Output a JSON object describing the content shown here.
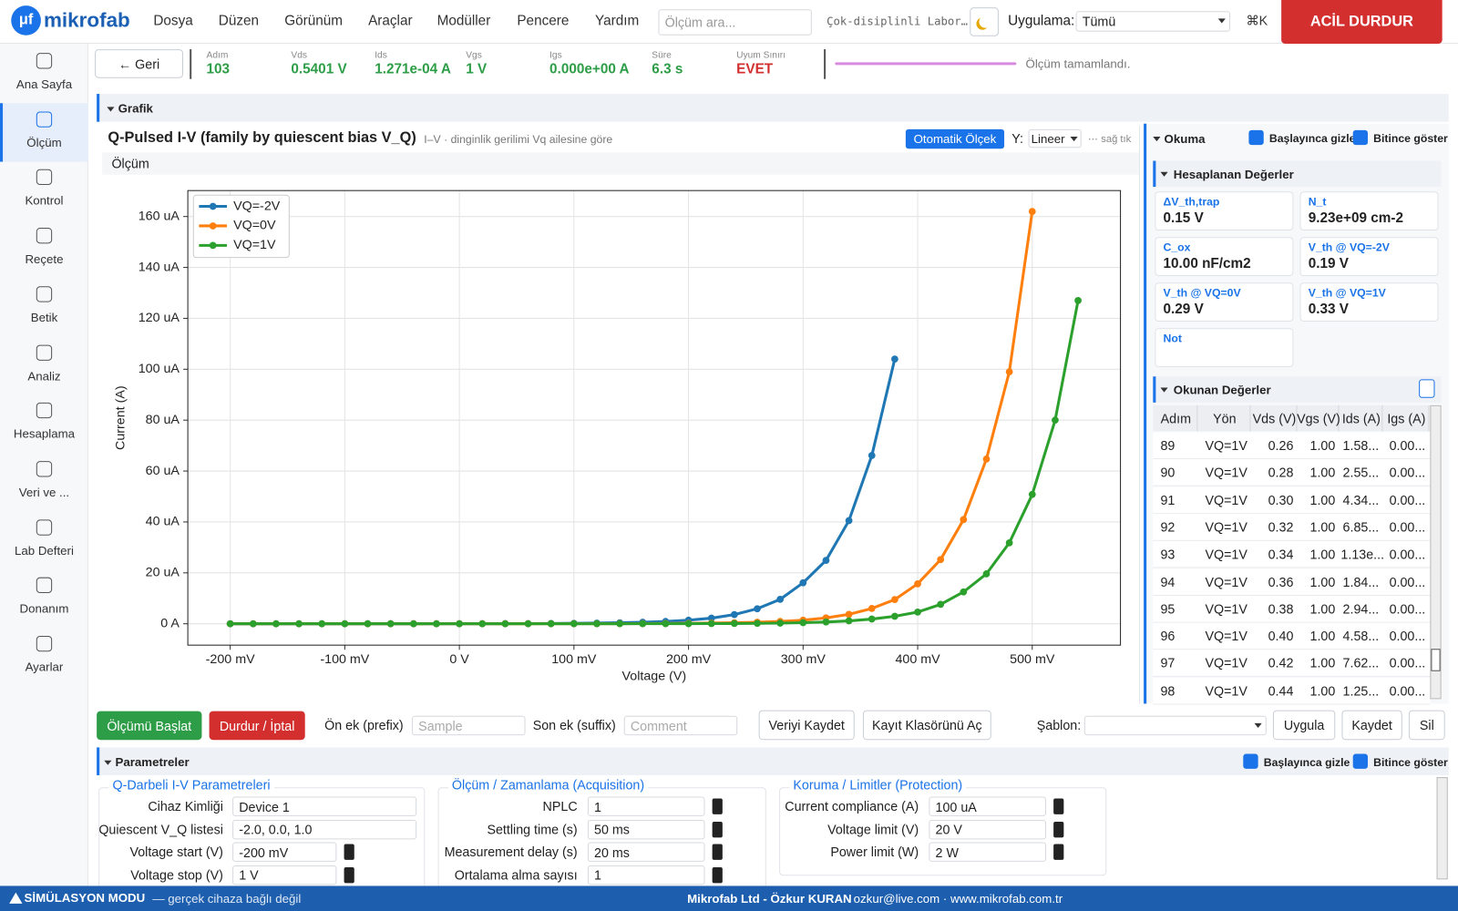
{
  "top_bar": {
    "logo_mark": "μf",
    "logo": "mikrofab",
    "menu": [
      "Dosya",
      "Düzen",
      "Görünüm",
      "Araçlar",
      "Modüller",
      "Pencere",
      "Yardım"
    ],
    "search_placeholder": "Ölçüm ara...",
    "lab": "Çok-disiplinli Labor…",
    "app_label": "Uygulama:",
    "app_value": "Tümü",
    "shortcut": "⌘K",
    "emergency": "ACİL DURDUR"
  },
  "sidebar": {
    "items": [
      "Ana Sayfa",
      "Ölçüm",
      "Kontrol",
      "Reçete",
      "Betik",
      "Analiz",
      "Hesaplama",
      "Veri ve ...",
      "Lab Defteri",
      "Donanım",
      "Ayarlar"
    ],
    "active": 1
  },
  "status": {
    "back": "← Geri",
    "stats": [
      {
        "label": "Adım",
        "value": "103"
      },
      {
        "label": "Vds",
        "value": "0.5401 V"
      },
      {
        "label": "Ids",
        "value": "1.271e-04 A"
      },
      {
        "label": "Vgs",
        "value": "1 V"
      },
      {
        "label": "Igs",
        "value": "0.000e+00 A"
      },
      {
        "label": "Süre",
        "value": "6.3 s"
      },
      {
        "label": "Uyum Sınırı",
        "value": "EVET"
      }
    ],
    "message": "Ölçüm tamamlandı."
  },
  "graph_section": "Grafik",
  "chart_header": {
    "subtitle": "I–V · dinginlik gerilimi Vq ailesine göre",
    "autoscale": "Otomatik Ölçek",
    "y_label": "Y:",
    "y_mode": "Lineer",
    "hint": "⋯ sağ tık",
    "tab": "Ölçüm"
  },
  "chart_data": {
    "type": "line",
    "title": "Q-Pulsed I-V (family by quiescent bias V_Q)",
    "xlabel": "Voltage (V)",
    "ylabel": "Current (A)",
    "grid": true,
    "legend": "upper left",
    "x": [
      -0.2,
      -0.18,
      -0.16,
      -0.14,
      -0.12,
      -0.1,
      -0.08,
      -0.06,
      -0.04,
      -0.02,
      0,
      0.02,
      0.04,
      0.06,
      0.08,
      0.1,
      0.12,
      0.14,
      0.16,
      0.18,
      0.2,
      0.22,
      0.24,
      0.26,
      0.28,
      0.3,
      0.32,
      0.34,
      0.36,
      0.38,
      0.4,
      0.42,
      0.44,
      0.46,
      0.48,
      0.5,
      0.52,
      0.54
    ],
    "series": [
      {
        "name": "VQ=-2V",
        "color": "#1f77b4",
        "values": [
          1e-09,
          1e-09,
          2e-09,
          2e-09,
          3e-09,
          4e-09,
          6e-09,
          8e-09,
          1.2e-08,
          1.7e-08,
          2.5e-08,
          3.7e-08,
          5.5e-08,
          8e-08,
          1.2e-07,
          1.8e-07,
          2.7e-07,
          4e-07,
          6e-07,
          9e-07,
          1.4e-06,
          2.2e-06,
          3.6e-06,
          5.9e-06,
          9.6e-06,
          1.61e-05,
          2.49e-05,
          4.05e-05,
          6.61e-05,
          0.000104,
          null,
          null,
          null,
          null,
          null,
          null,
          null,
          null
        ]
      },
      {
        "name": "VQ=0V",
        "color": "#ff7f0e",
        "values": [
          3e-10,
          4e-10,
          5e-10,
          6e-10,
          8e-10,
          1e-09,
          1e-09,
          2e-09,
          2e-09,
          3e-09,
          4e-09,
          6e-09,
          8e-09,
          1.2e-08,
          1.7e-08,
          2.5e-08,
          3.7e-08,
          5.5e-08,
          8e-08,
          1.2e-07,
          1.8e-07,
          2.7e-07,
          4e-07,
          6e-07,
          9e-07,
          1.4e-06,
          2.3e-06,
          3.7e-06,
          6e-06,
          9.5e-06,
          1.57e-05,
          2.52e-05,
          4.09e-05,
          6.47e-05,
          9.9e-05,
          0.000162,
          null,
          null
        ]
      },
      {
        "name": "VQ=1V",
        "color": "#2ca02c",
        "values": [
          1e-11,
          1e-11,
          1e-11,
          1e-11,
          2e-11,
          3e-11,
          5e-11,
          8e-11,
          1.2e-10,
          2e-10,
          3e-10,
          5e-10,
          8e-10,
          1.3e-09,
          2.1e-09,
          3.4e-09,
          5.5e-09,
          8.8e-09,
          1.4e-08,
          2.3e-08,
          3.7e-08,
          6e-08,
          9.7e-08,
          1.58e-07,
          2.55e-07,
          4.34e-07,
          6.85e-07,
          1.13e-06,
          1.84e-06,
          2.94e-06,
          4.58e-06,
          7.62e-06,
          1.25e-05,
          1.96e-05,
          3.18e-05,
          5.08e-05,
          8e-05,
          0.000127
        ]
      }
    ],
    "xlim": [
      -0.237,
      0.577
    ],
    "ylim": [
      -8.4e-06,
      0.0001702
    ],
    "xticks": [
      {
        "value": -0.2,
        "label": "-200 mV"
      },
      {
        "value": -0.1,
        "label": "-100 mV"
      },
      {
        "value": 0,
        "label": "0 V"
      },
      {
        "value": 0.1,
        "label": "100 mV"
      },
      {
        "value": 0.2,
        "label": "200 mV"
      },
      {
        "value": 0.3,
        "label": "300 mV"
      },
      {
        "value": 0.4,
        "label": "400 mV"
      },
      {
        "value": 0.5,
        "label": "500 mV"
      }
    ],
    "yticks": [
      {
        "value": 0,
        "label": "0 A"
      },
      {
        "value": 2e-05,
        "label": "20 uA"
      },
      {
        "value": 4e-05,
        "label": "40 uA"
      },
      {
        "value": 6e-05,
        "label": "60 uA"
      },
      {
        "value": 8e-05,
        "label": "80 uA"
      },
      {
        "value": 0.0001,
        "label": "100 uA"
      },
      {
        "value": 0.00012,
        "label": "120 uA"
      },
      {
        "value": 0.00014,
        "label": "140 uA"
      },
      {
        "value": 0.00016,
        "label": "160 uA"
      }
    ]
  },
  "reading_panel": {
    "title": "Okuma",
    "hide_on_start": "Başlayınca gizle",
    "show_on_end": "Bitince göster",
    "computed_title": "Hesaplanan Değerler",
    "cards": [
      {
        "label": "ΔV_th,trap",
        "value": "0.15 V"
      },
      {
        "label": "N_t",
        "value": "9.23e+09 cm-2"
      },
      {
        "label": "C_ox",
        "value": "10.00 nF/cm2"
      },
      {
        "label": "V_th @ VQ=-2V",
        "value": "0.19 V"
      },
      {
        "label": "V_th @ VQ=0V",
        "value": "0.29 V"
      },
      {
        "label": "V_th @ VQ=1V",
        "value": "0.33 V"
      },
      {
        "label": "Not"
      }
    ],
    "readings_title": "Okunan Değerler",
    "table": {
      "headers": [
        "Adım",
        "Yön",
        "Vds (V)",
        "Vgs (V)",
        "Ids (A)",
        "Igs (A)"
      ],
      "rows": [
        [
          "89",
          "VQ=1V",
          "0.26",
          "1.00",
          "1.58...",
          "0.00..."
        ],
        [
          "90",
          "VQ=1V",
          "0.28",
          "1.00",
          "2.55...",
          "0.00..."
        ],
        [
          "91",
          "VQ=1V",
          "0.30",
          "1.00",
          "4.34...",
          "0.00..."
        ],
        [
          "92",
          "VQ=1V",
          "0.32",
          "1.00",
          "6.85...",
          "0.00..."
        ],
        [
          "93",
          "VQ=1V",
          "0.34",
          "1.00",
          "1.13e...",
          "0.00..."
        ],
        [
          "94",
          "VQ=1V",
          "0.36",
          "1.00",
          "1.84...",
          "0.00..."
        ],
        [
          "95",
          "VQ=1V",
          "0.38",
          "1.00",
          "2.94...",
          "0.00..."
        ],
        [
          "96",
          "VQ=1V",
          "0.40",
          "1.00",
          "4.58...",
          "0.00..."
        ],
        [
          "97",
          "VQ=1V",
          "0.42",
          "1.00",
          "7.62...",
          "0.00..."
        ],
        [
          "98",
          "VQ=1V",
          "0.44",
          "1.00",
          "1.25...",
          "0.00..."
        ]
      ]
    }
  },
  "toolbar": {
    "start": "Ölçümü Başlat",
    "stop": "Durdur / İptal",
    "prefix_label": "Ön ek (prefix)",
    "prefix_placeholder": "Sample",
    "suffix_label": "Son ek (suffix)",
    "suffix_placeholder": "Comment",
    "save_data": "Veriyi Kaydet",
    "open_folder": "Kayıt Klasörünü Aç",
    "template_label": "Şablon:",
    "apply": "Uygula",
    "save": "Kaydet",
    "delete": "Sil"
  },
  "parameters": {
    "title": "Parametreler",
    "hide_on_start": "Başlayınca gizle",
    "show_on_end": "Bitince göster",
    "groups": [
      {
        "title": "Q-Darbeli I-V Parametreleri",
        "fields": [
          {
            "label": "Cihaz Kimliği",
            "value": "Device 1"
          },
          {
            "label": "Quiescent V_Q listesi",
            "value": "-2.0, 0.0, 1.0"
          },
          {
            "label": "Voltage start (V)",
            "value": "-200 mV"
          },
          {
            "label": "Voltage stop (V)",
            "value": "1 V"
          }
        ]
      },
      {
        "title": "Ölçüm / Zamanlama (Acquisition)",
        "fields": [
          {
            "label": "NPLC",
            "value": "1"
          },
          {
            "label": "Settling time (s)",
            "value": "50 ms"
          },
          {
            "label": "Measurement delay (s)",
            "value": "20 ms"
          },
          {
            "label": "Ortalama alma sayısı",
            "value": "1"
          }
        ]
      },
      {
        "title": "Koruma / Limitler (Protection)",
        "fields": [
          {
            "label": "Current compliance (A)",
            "value": "100 uA"
          },
          {
            "label": "Voltage limit (V)",
            "value": "20 V"
          },
          {
            "label": "Power limit (W)",
            "value": "2 W"
          }
        ]
      }
    ]
  },
  "footer": {
    "mode": "SİMÜLASYON MODU",
    "mode_note": "— gerçek cihaza bağlı değil",
    "company": "Mikrofab Ltd - Özkur KURAN",
    "contact": "· ozkur@live.com · www.mikrofab.com.tr"
  }
}
